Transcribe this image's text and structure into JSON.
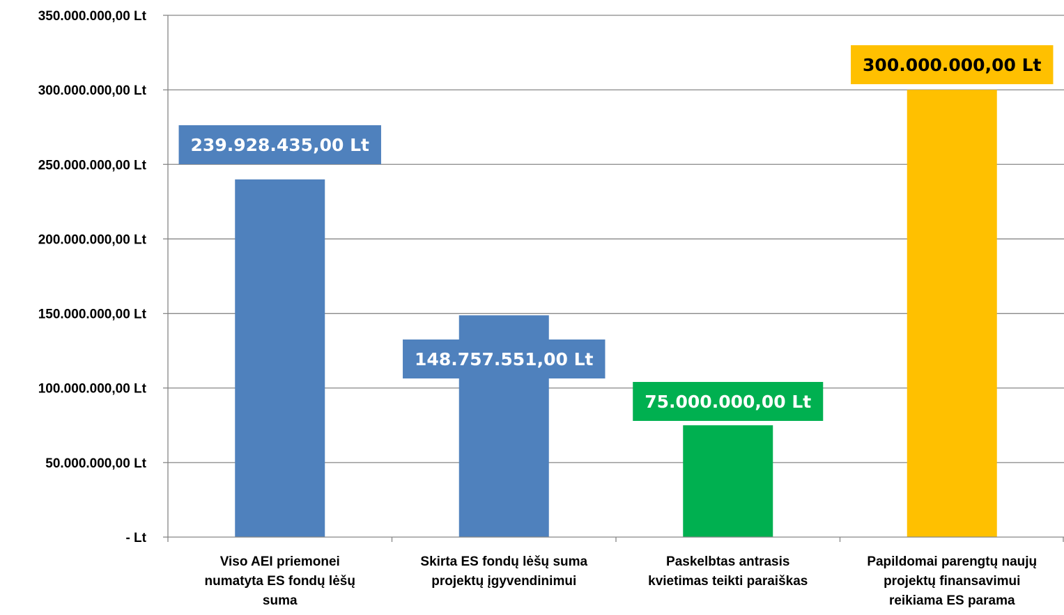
{
  "chart_data": {
    "type": "bar",
    "title": "",
    "xlabel": "",
    "ylabel": "",
    "ylim": [
      0,
      350000000
    ],
    "grid": true,
    "legend": "none",
    "y_ticks": [
      {
        "value": 0,
        "label": "-   Lt"
      },
      {
        "value": 50000000,
        "label": "50.000.000,00 Lt"
      },
      {
        "value": 100000000,
        "label": "100.000.000,00 Lt"
      },
      {
        "value": 150000000,
        "label": "150.000.000,00 Lt"
      },
      {
        "value": 200000000,
        "label": "200.000.000,00 Lt"
      },
      {
        "value": 250000000,
        "label": "250.000.000,00 Lt"
      },
      {
        "value": 300000000,
        "label": "300.000.000,00 Lt"
      },
      {
        "value": 350000000,
        "label": "350.000.000,00 Lt"
      }
    ],
    "categories": [
      [
        "Viso AEI priemonei",
        "numatyta ES fondų lėšų",
        "suma"
      ],
      [
        "Skirta  ES fondų lėšų suma",
        "projektų įgyvendinimui"
      ],
      [
        "Paskelbtas antrasis",
        "kvietimas teikti paraiškas"
      ],
      [
        "Papildomai parengtų naujų",
        "projektų finansavimui",
        "reikiama ES parama"
      ]
    ],
    "values": [
      239928435,
      148757551,
      75000000,
      300000000
    ],
    "data_labels": [
      "239.928.435,00 Lt",
      "148.757.551,00 Lt",
      "75.000.000,00 Lt",
      "300.000.000,00 Lt"
    ],
    "colors": [
      "#4f81bd",
      "#4f81bd",
      "#00b050",
      "#ffc000"
    ],
    "label_colors": [
      "#ffffff",
      "#ffffff",
      "#ffffff",
      "#000000"
    ]
  }
}
